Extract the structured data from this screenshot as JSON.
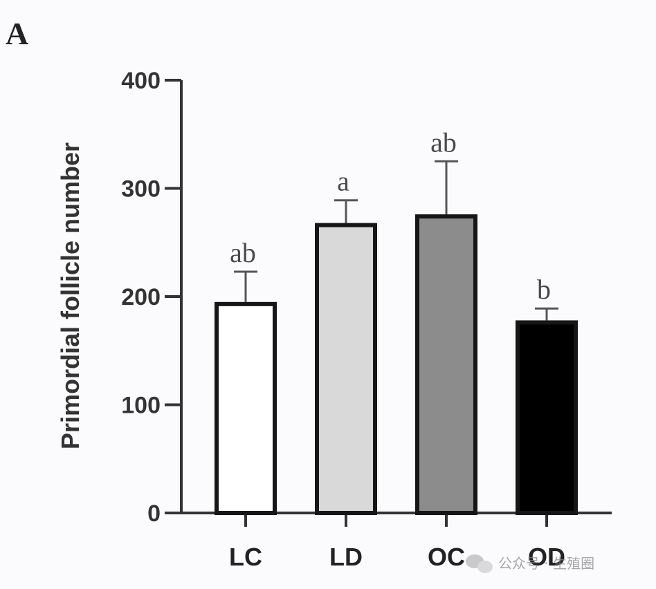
{
  "panel_label": "A",
  "chart_data": {
    "type": "bar",
    "categories": [
      "LC",
      "LD",
      "OC",
      "OD"
    ],
    "values": [
      195,
      268,
      276,
      178
    ],
    "errors": [
      28,
      21,
      49,
      11
    ],
    "significance": [
      "ab",
      "a",
      "ab",
      "b"
    ],
    "bar_colors": [
      "#ffffff",
      "#d9d9d9",
      "#8c8c8c",
      "#000000"
    ],
    "ylabel": "Primordial follicle number",
    "xlabel": "",
    "ylim": [
      0,
      400
    ],
    "yticks": [
      0,
      100,
      200,
      300,
      400
    ],
    "grid": false,
    "legend": "none"
  },
  "watermark": {
    "icon": "wechat-icon",
    "text": "公众号 · 生殖圈"
  }
}
